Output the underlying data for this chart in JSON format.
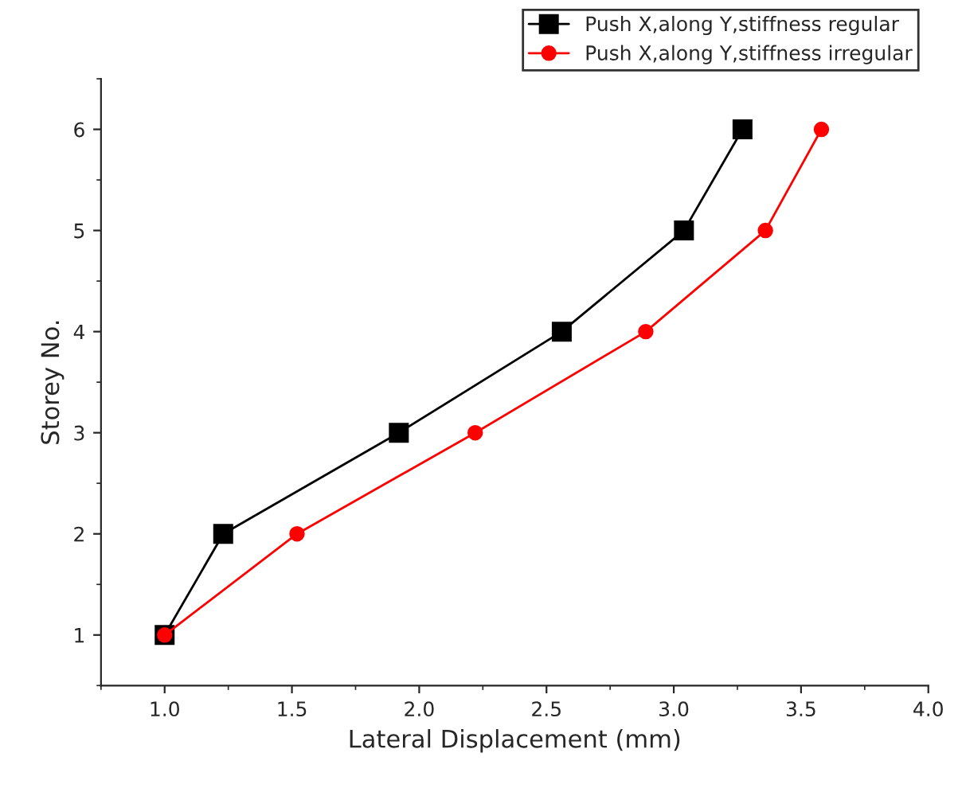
{
  "chart_data": {
    "type": "line",
    "xlabel": "Lateral Displacement (mm)",
    "ylabel": "Storey No.",
    "x": [
      1.0,
      1.23,
      1.92,
      2.56,
      3.04,
      3.27
    ],
    "series": [
      {
        "name": "Push X,along Y,stiffness regular",
        "color": "#000000",
        "marker": "square",
        "values": [
          1,
          2,
          3,
          4,
          5,
          6
        ]
      },
      {
        "name": "Push X,along Y,stiffness irregular",
        "color": "#ff0000",
        "marker": "circle",
        "x": [
          1.0,
          1.52,
          2.22,
          2.89,
          3.36,
          3.58
        ],
        "values": [
          1,
          2,
          3,
          4,
          5,
          6
        ]
      }
    ],
    "xlim": [
      0.75,
      4.0
    ],
    "xticks": [
      {
        "value": 1.0,
        "label": "1.0"
      },
      {
        "value": 1.5,
        "label": "1.5"
      },
      {
        "value": 2.0,
        "label": "2.0"
      },
      {
        "value": 2.5,
        "label": "2.5"
      },
      {
        "value": 3.0,
        "label": "3.0"
      },
      {
        "value": 3.5,
        "label": "3.5"
      },
      {
        "value": 4.0,
        "label": "4.0"
      }
    ],
    "ylim": [
      0.5,
      6.5
    ],
    "yticks": [
      1,
      2,
      3,
      4,
      5,
      6
    ],
    "grid": false,
    "legend": "top right",
    "line_style": "solid"
  }
}
